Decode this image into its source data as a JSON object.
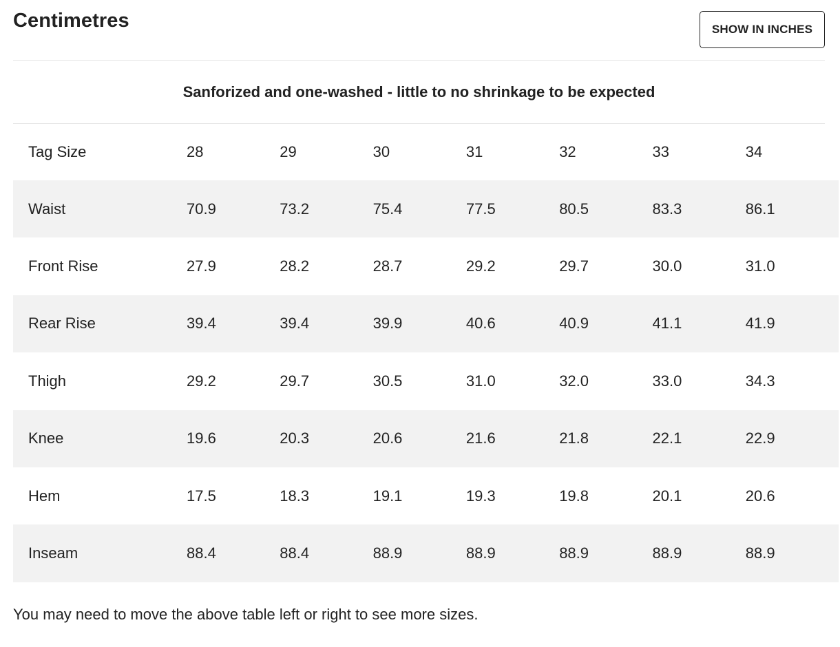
{
  "header": {
    "title": "Centimetres",
    "toggle_label": "SHOW IN INCHES"
  },
  "subheading": "Sanforized and one-washed - little to no shrinkage to be expected",
  "table": {
    "header_label": "Tag Size",
    "sizes": [
      "28",
      "29",
      "30",
      "31",
      "32",
      "33",
      "34"
    ],
    "rows": [
      {
        "label": "Waist",
        "values": [
          "70.9",
          "73.2",
          "75.4",
          "77.5",
          "80.5",
          "83.3",
          "86.1"
        ]
      },
      {
        "label": "Front Rise",
        "values": [
          "27.9",
          "28.2",
          "28.7",
          "29.2",
          "29.7",
          "30.0",
          "31.0"
        ]
      },
      {
        "label": "Rear Rise",
        "values": [
          "39.4",
          "39.4",
          "39.9",
          "40.6",
          "40.9",
          "41.1",
          "41.9"
        ]
      },
      {
        "label": "Thigh",
        "values": [
          "29.2",
          "29.7",
          "30.5",
          "31.0",
          "32.0",
          "33.0",
          "34.3"
        ]
      },
      {
        "label": "Knee",
        "values": [
          "19.6",
          "20.3",
          "20.6",
          "21.6",
          "21.8",
          "22.1",
          "22.9"
        ]
      },
      {
        "label": "Hem",
        "values": [
          "17.5",
          "18.3",
          "19.1",
          "19.3",
          "19.8",
          "20.1",
          "20.6"
        ]
      },
      {
        "label": "Inseam",
        "values": [
          "88.4",
          "88.4",
          "88.9",
          "88.9",
          "88.9",
          "88.9",
          "88.9"
        ]
      }
    ]
  },
  "note": "You may need to move the above table left or right to see more sizes."
}
